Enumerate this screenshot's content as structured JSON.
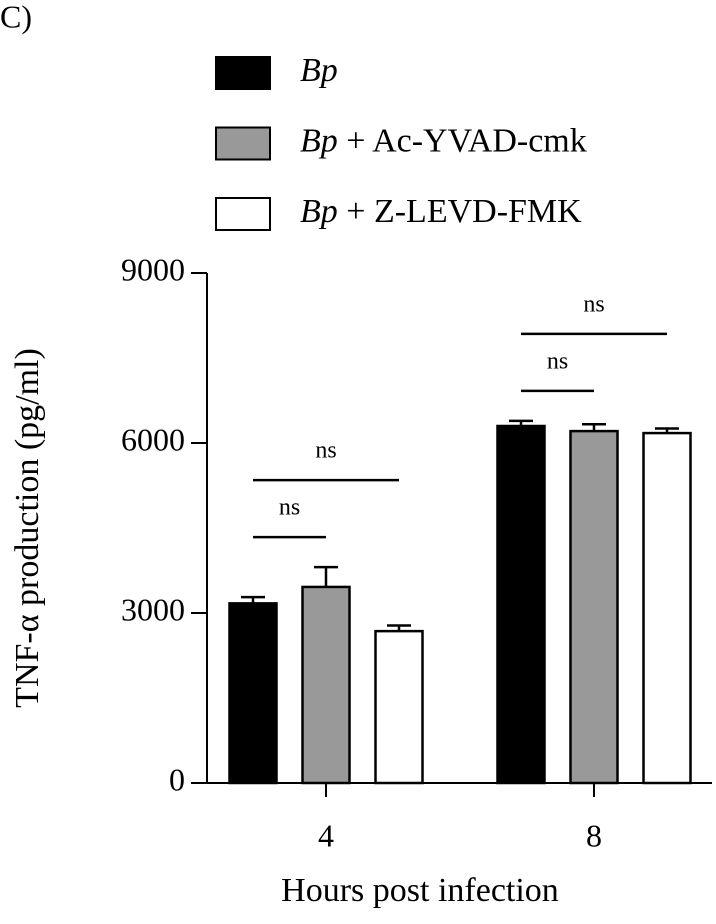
{
  "chart_data": {
    "type": "bar",
    "panel_label": "C)",
    "x_label": "Hours post infection",
    "y_label": "TNF-α production (pg/ml)",
    "categories": [
      "4",
      "8"
    ],
    "series": [
      {
        "name": "Bp",
        "color": "#000000",
        "values": [
          3170,
          6300
        ],
        "errors": [
          110,
          90
        ]
      },
      {
        "name": "Bp + Ac-YVAD-cmk",
        "color": "#999999",
        "values": [
          3460,
          6210
        ],
        "errors": [
          350,
          120
        ]
      },
      {
        "name": "Bp + Z-LEVD-FMK",
        "color": "#ffffff",
        "values": [
          2680,
          6175
        ],
        "errors": [
          100,
          80
        ]
      }
    ],
    "annotations": [
      {
        "text": "ns",
        "group": 0,
        "from": 0,
        "to": 1
      },
      {
        "text": "ns",
        "group": 0,
        "from": 0,
        "to": 2
      },
      {
        "text": "ns",
        "group": 1,
        "from": 0,
        "to": 1
      },
      {
        "text": "ns",
        "group": 1,
        "from": 0,
        "to": 2
      }
    ],
    "ylim": [
      0,
      9000
    ],
    "yticks": [
      0,
      3000,
      6000,
      9000
    ]
  }
}
